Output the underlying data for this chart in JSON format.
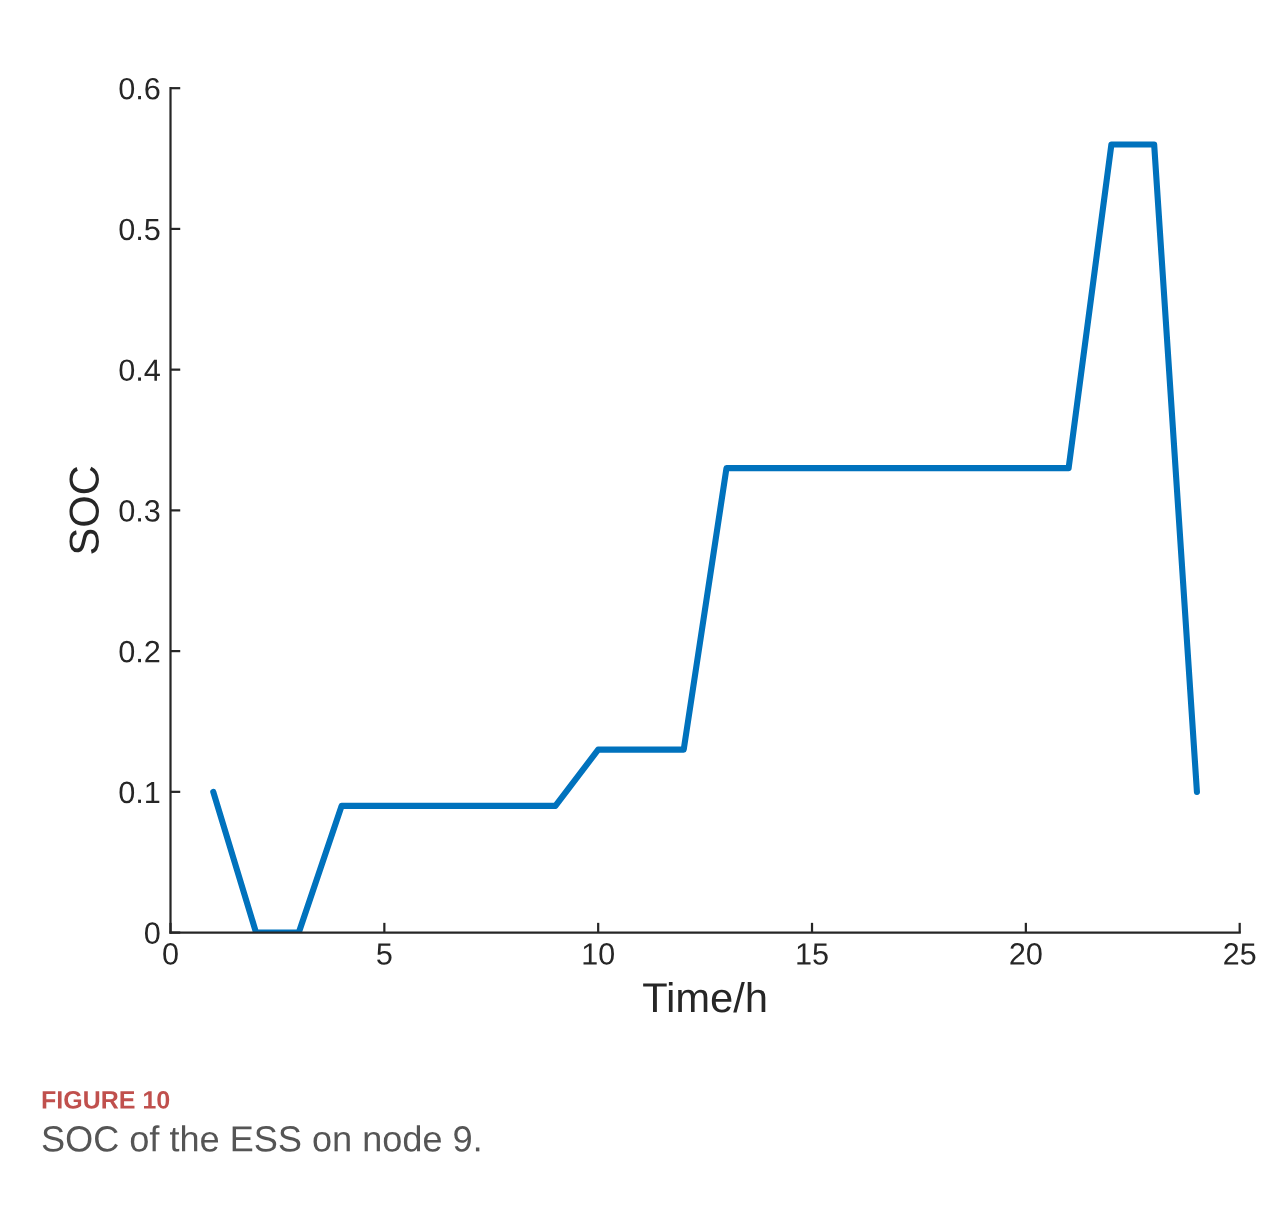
{
  "chart_data": {
    "type": "line",
    "xlabel": "Time/h",
    "ylabel": "SOC",
    "x": [
      1,
      2,
      3,
      4,
      9,
      10,
      12,
      13,
      21,
      22,
      23,
      24
    ],
    "series": [
      {
        "color": "#0072bd",
        "values": [
          0.1,
          0,
          0,
          0.09,
          0.09,
          0.13,
          0.13,
          0.33,
          0.33,
          0.56,
          0.56,
          0.1
        ]
      }
    ],
    "xlim": [
      0,
      25
    ],
    "xticks": [
      0,
      5,
      10,
      15,
      20,
      25
    ],
    "ylim": [
      0,
      0.6
    ],
    "yticks": [
      0,
      0.1,
      0.2,
      0.3,
      0.4,
      0.5,
      0.6
    ],
    "grid": false,
    "legend": false,
    "marker": "none",
    "line_style": "solid",
    "annotations": [
      "FIGURE 10",
      "SOC of the ESS on node 9."
    ]
  }
}
